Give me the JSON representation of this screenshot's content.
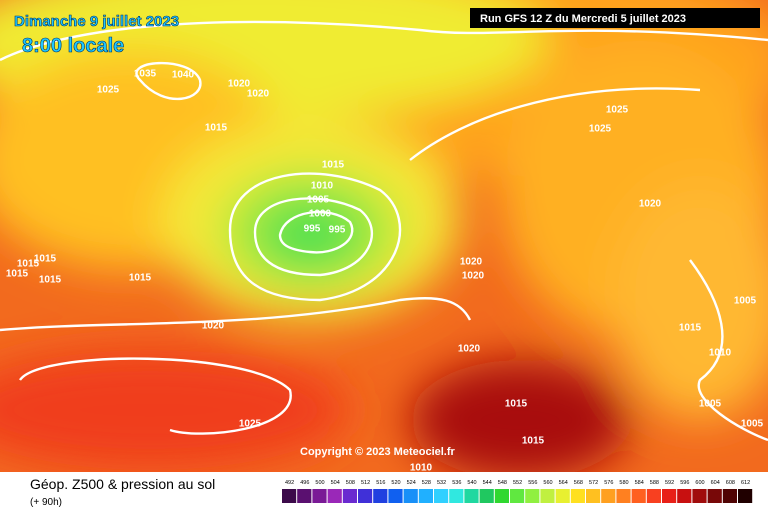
{
  "header": {
    "date": "Dimanche 9 juillet 2023",
    "time": "8:00 locale",
    "run": "Run GFS 12 Z du Mercredi 5 juillet 2023"
  },
  "copyright": "Copyright © 2023 Meteociel.fr",
  "isobars": [
    1035,
    1040,
    1025,
    1020,
    1020,
    1015,
    1015,
    1010,
    1005,
    1000,
    995,
    995,
    1025,
    1025,
    1020,
    1020,
    1020,
    1015,
    1015,
    1015,
    1015,
    1015,
    1020,
    1020,
    1015,
    1010,
    1005,
    1005,
    1005,
    1015,
    1015,
    1025,
    1010
  ],
  "legend": {
    "title": "Géop. Z500 & pression au sol",
    "subtitle": "(+ 90h)",
    "scale": [
      {
        "value": 492,
        "color": "#3c0a4a"
      },
      {
        "value": 496,
        "color": "#5a1070"
      },
      {
        "value": 500,
        "color": "#7a1a96"
      },
      {
        "value": 504,
        "color": "#9a28b8"
      },
      {
        "value": 508,
        "color": "#6a2ad0"
      },
      {
        "value": 512,
        "color": "#4030d8"
      },
      {
        "value": 516,
        "color": "#2040e0"
      },
      {
        "value": 520,
        "color": "#1060f0"
      },
      {
        "value": 524,
        "color": "#1890f8"
      },
      {
        "value": 528,
        "color": "#20b0ff"
      },
      {
        "value": 532,
        "color": "#30d0ff"
      },
      {
        "value": 536,
        "color": "#30e8e0"
      },
      {
        "value": 540,
        "color": "#20d8a0"
      },
      {
        "value": 544,
        "color": "#20c860"
      },
      {
        "value": 548,
        "color": "#30d830"
      },
      {
        "value": 552,
        "color": "#60e840"
      },
      {
        "value": 556,
        "color": "#90f040"
      },
      {
        "value": 560,
        "color": "#c0f040"
      },
      {
        "value": 564,
        "color": "#e8f030"
      },
      {
        "value": 568,
        "color": "#ffe020"
      },
      {
        "value": 572,
        "color": "#ffc020"
      },
      {
        "value": 576,
        "color": "#ffa020"
      },
      {
        "value": 580,
        "color": "#ff8020"
      },
      {
        "value": 584,
        "color": "#ff6020"
      },
      {
        "value": 588,
        "color": "#f84020"
      },
      {
        "value": 592,
        "color": "#e82018"
      },
      {
        "value": 596,
        "color": "#c81010"
      },
      {
        "value": 600,
        "color": "#a00c0c"
      },
      {
        "value": 604,
        "color": "#780808"
      },
      {
        "value": 608,
        "color": "#500404"
      },
      {
        "value": 612,
        "color": "#200000"
      }
    ]
  }
}
